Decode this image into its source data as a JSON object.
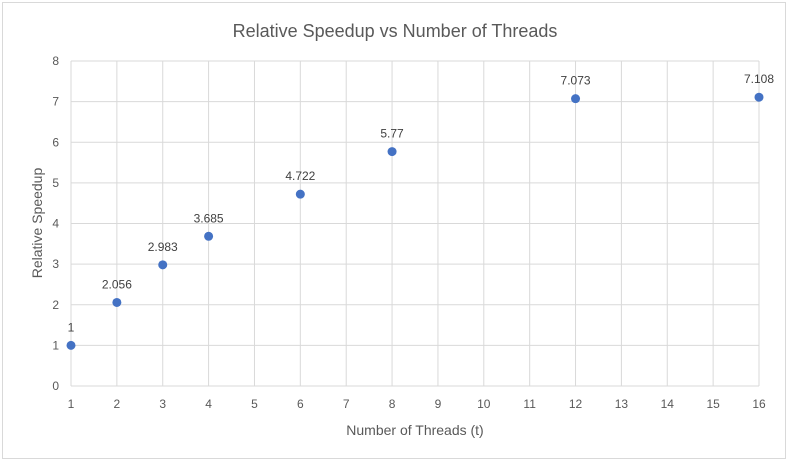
{
  "chart_data": {
    "type": "scatter",
    "title": "Relative Speedup vs Number of Threads",
    "xlabel": "Number of Threads (t)",
    "ylabel": "Relative Speedup",
    "x_categories": [
      "1",
      "2",
      "3",
      "4",
      "5",
      "6",
      "7",
      "8",
      "9",
      "10",
      "11",
      "12",
      "13",
      "14",
      "15",
      "16"
    ],
    "ylim": [
      0,
      8
    ],
    "y_ticks": [
      "0",
      "1",
      "2",
      "3",
      "4",
      "5",
      "6",
      "7",
      "8"
    ],
    "grid": true,
    "marker_color": "#4472c4",
    "series": [
      {
        "name": "Relative Speedup",
        "points": [
          {
            "x": 1,
            "y": 1,
            "label": "1"
          },
          {
            "x": 2,
            "y": 2.056,
            "label": "2.056"
          },
          {
            "x": 3,
            "y": 2.983,
            "label": "2.983"
          },
          {
            "x": 4,
            "y": 3.685,
            "label": "3.685"
          },
          {
            "x": 6,
            "y": 4.722,
            "label": "4.722"
          },
          {
            "x": 8,
            "y": 5.77,
            "label": "5.77"
          },
          {
            "x": 12,
            "y": 7.073,
            "label": "7.073"
          },
          {
            "x": 16,
            "y": 7.108,
            "label": "7.108"
          }
        ]
      }
    ]
  }
}
